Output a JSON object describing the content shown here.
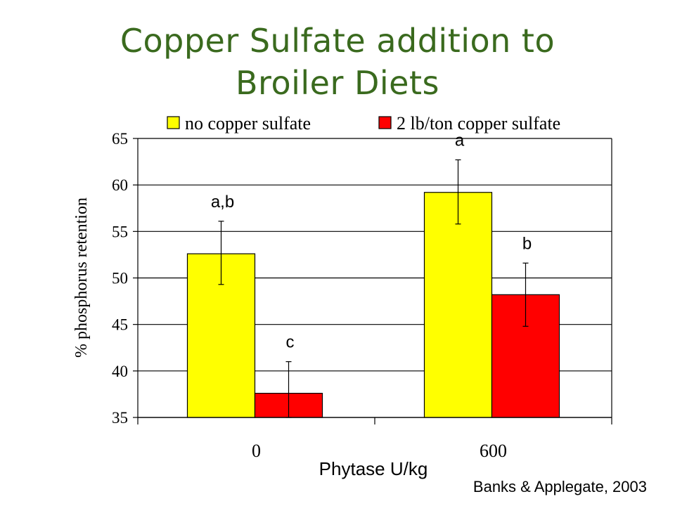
{
  "title_line1": "Copper Sulfate addition to",
  "title_line2": "Broiler Diets",
  "citation": "Banks & Applegate, 2003",
  "chart_data": {
    "type": "bar",
    "title": "Copper Sulfate addition to Broiler Diets",
    "xlabel": "Phytase U/kg",
    "ylabel": "% phosphorus retention",
    "ylim": [
      35,
      65
    ],
    "yticks": [
      35,
      40,
      45,
      50,
      55,
      60,
      65
    ],
    "ytick_labels": [
      "35",
      "40",
      "45",
      "50",
      "55",
      "60",
      "65"
    ],
    "categories": [
      "0",
      "600"
    ],
    "legend_position": "top",
    "grid": true,
    "series": [
      {
        "name": "no copper sulfate",
        "color": "#ffff00",
        "values": [
          52.6,
          59.2
        ],
        "err_low": [
          49.3,
          55.8
        ],
        "err_high": [
          56.1,
          62.7
        ],
        "labels": [
          "a,b",
          "a"
        ]
      },
      {
        "name": "2 lb/ton copper sulfate",
        "color": "#ff0000",
        "values": [
          37.6,
          48.2
        ],
        "err_low": [
          35.0,
          44.8
        ],
        "err_high": [
          41.0,
          51.6
        ],
        "labels": [
          "c",
          "b"
        ]
      }
    ]
  }
}
